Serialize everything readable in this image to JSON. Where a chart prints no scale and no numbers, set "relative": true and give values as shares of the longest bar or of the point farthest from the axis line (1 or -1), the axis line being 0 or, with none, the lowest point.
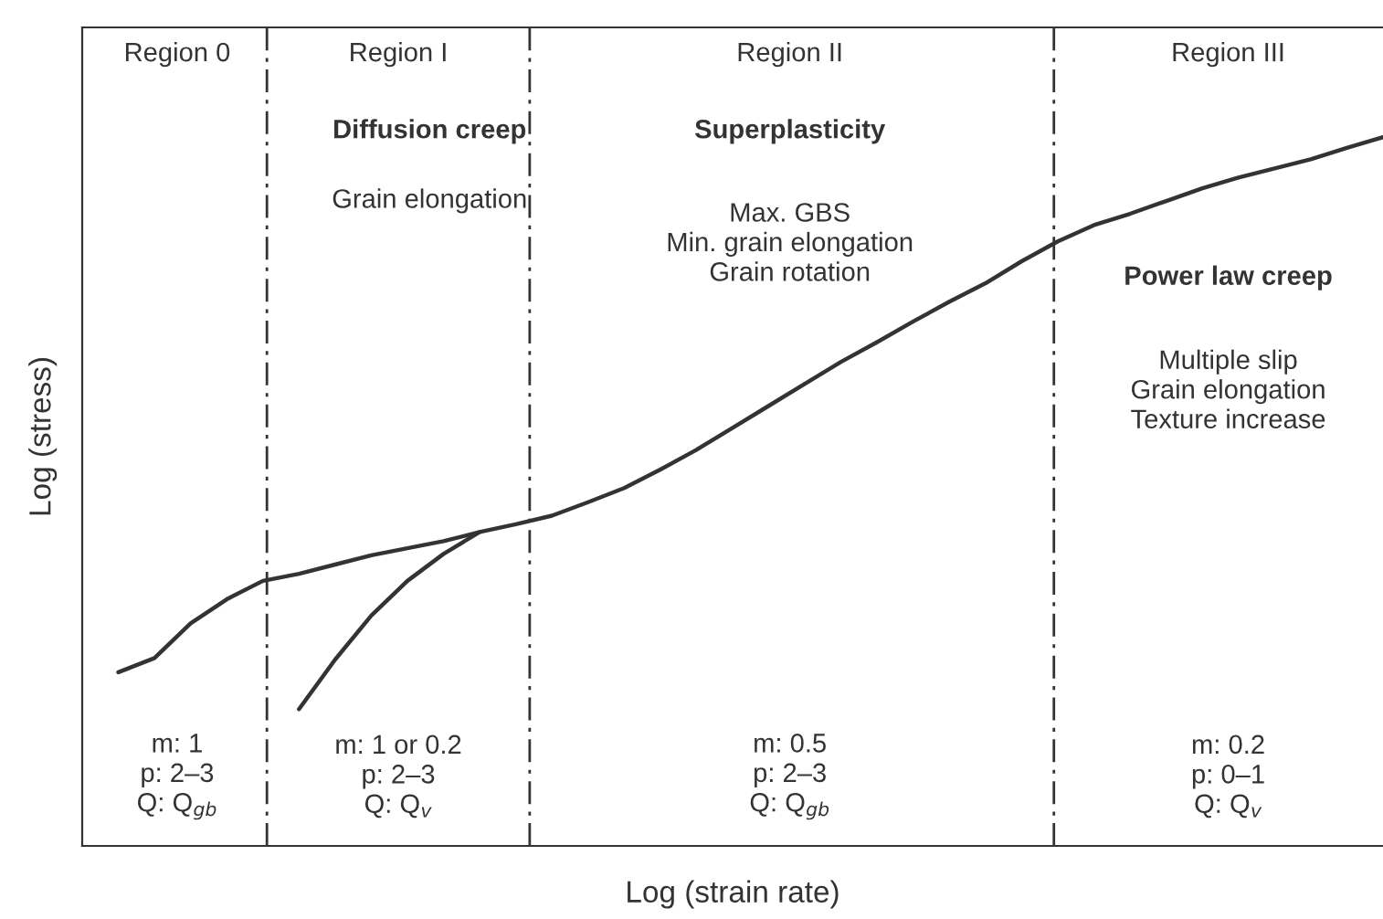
{
  "chart_data": {
    "type": "line",
    "relative": true,
    "xlabel": "Log (strain rate)",
    "ylabel": "Log (stress)",
    "color": "#333333",
    "marker": "none",
    "categories": [
      null,
      null,
      null,
      null,
      null,
      null,
      null,
      null,
      null,
      null,
      null,
      null,
      null,
      null,
      null,
      null,
      null,
      null,
      null,
      null,
      null,
      null,
      null,
      null,
      null,
      null,
      null,
      null,
      null,
      null,
      null,
      null,
      null,
      null,
      null,
      null,
      null
    ],
    "series": [
      {
        "color": "#333333",
        "values": [
          null,
          0.245,
          0.265,
          0.314,
          0.348,
          0.374,
          0.384,
          0.397,
          0.41,
          0.42,
          0.43,
          0.443,
          0.454,
          0.466,
          0.485,
          0.505,
          0.531,
          0.559,
          0.59,
          0.621,
          0.652,
          0.683,
          0.711,
          0.74,
          0.768,
          0.794,
          0.825,
          0.853,
          0.876,
          0.892,
          0.91,
          0.928,
          0.943,
          0.956,
          0.969,
          0.985,
          1
        ]
      },
      {
        "color": "#333333",
        "values": [
          null,
          null,
          null,
          null,
          null,
          null,
          0.193,
          0.263,
          0.325,
          0.374,
          0.412,
          0.443,
          null,
          null,
          null,
          null,
          null,
          null,
          null,
          null,
          null,
          null,
          null,
          null,
          null,
          null,
          null,
          null,
          null,
          null,
          null,
          null,
          null,
          null,
          null,
          null,
          null
        ]
      }
    ],
    "annotations": [
      "Region 0",
      "Region I",
      "Region II",
      "Region III",
      "Diffusion creep",
      "Grain elongation",
      "Superplasticity",
      "Max. GBS\nMin. grain elongation\nGrain rotation",
      "Power law creep",
      "Multiple slip\nGrain elongation\nTexture increase",
      "m: 1\np: 2–3\nQ: Q$_{gb}$",
      "m: 1 or 0.2\np: 2–3\nQ: Q$_{v}$",
      "m: 0.5\np: 2–3\nQ: Q$_{gb}$",
      "m: 0.2\np: 0–1\nQ: Q$_{v}$"
    ]
  }
}
